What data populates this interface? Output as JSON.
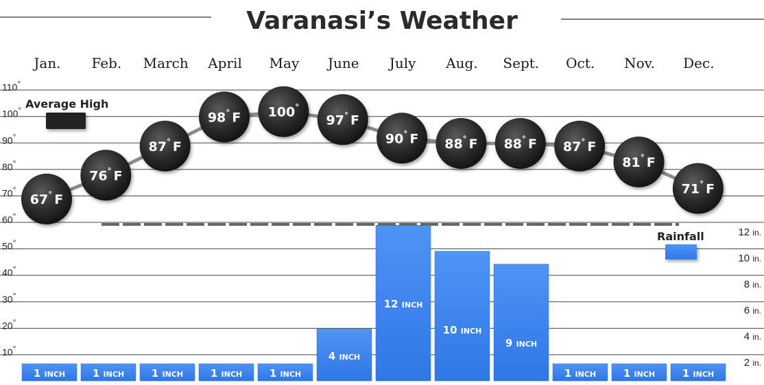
{
  "chart_data": {
    "type": "bar+line",
    "title": "Varanasi’s Weather",
    "categories": [
      "Jan.",
      "Feb.",
      "March",
      "April",
      "May",
      "June",
      "July",
      "Aug.",
      "Sept.",
      "Oct.",
      "Nov.",
      "Dec."
    ],
    "series": [
      {
        "name": "Average High",
        "type": "line",
        "values": [
          67,
          76,
          87,
          98,
          100,
          97,
          90,
          88,
          88,
          87,
          81,
          71
        ],
        "labels": [
          "67",
          "76",
          "87",
          "98",
          "100",
          "97",
          "90",
          "88",
          "88",
          "87",
          "81",
          "71"
        ],
        "label_unit": "F",
        "color": "#232323"
      },
      {
        "name": "Rainfall",
        "type": "bar",
        "values": [
          1,
          1,
          1,
          1,
          1,
          4,
          12,
          10,
          9,
          1,
          1,
          1
        ],
        "labels": [
          "1",
          "1",
          "1",
          "1",
          "1",
          "4",
          "12",
          "10",
          "9",
          "1",
          "1",
          "1"
        ],
        "label_unit": "INCH",
        "color": "#3d86f0"
      }
    ],
    "left_axis": {
      "ticks": [
        10,
        20,
        30,
        40,
        50,
        60,
        70,
        80,
        90,
        100,
        110
      ],
      "tick_labels": [
        "10",
        "20",
        "30",
        "40",
        "50",
        "60",
        "70",
        "80",
        "90",
        "100",
        "110"
      ],
      "degree_symbol": "°",
      "ylim": [
        0,
        110
      ]
    },
    "right_axis": {
      "ticks": [
        2,
        4,
        6,
        8,
        10,
        12
      ],
      "tick_labels": [
        "2",
        "4",
        "6",
        "8",
        "10",
        "12"
      ],
      "unit": "in."
    },
    "grid": true,
    "legend": [
      {
        "label": "Average High",
        "placement": "top-left",
        "color": "#232323"
      },
      {
        "label": "Rainfall",
        "placement": "right",
        "color": "#3d86f0"
      }
    ]
  }
}
